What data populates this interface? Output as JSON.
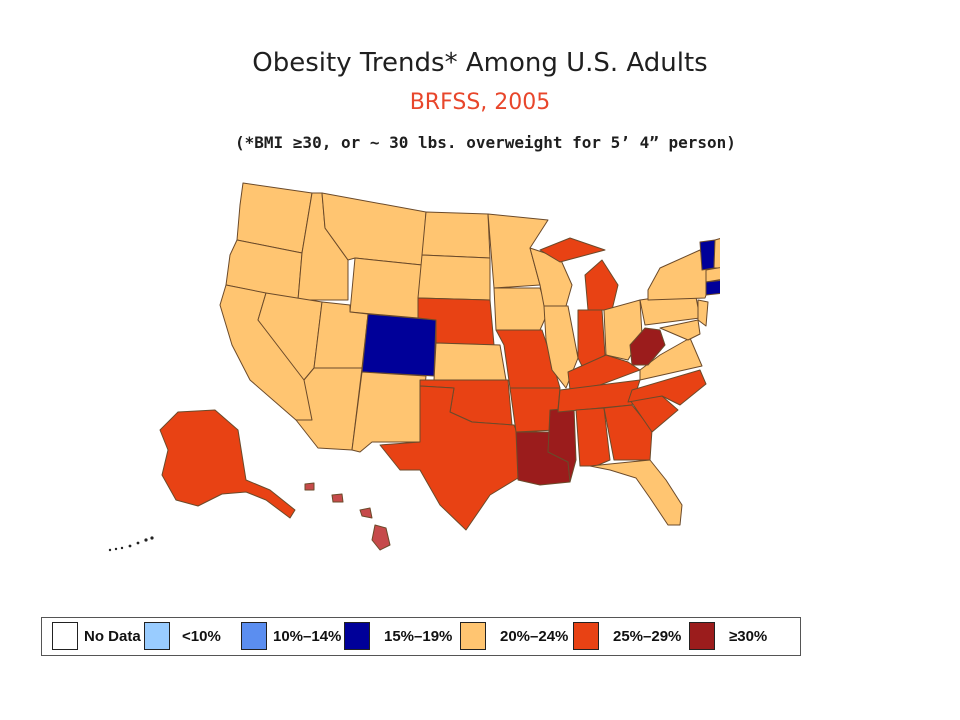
{
  "title": "Obesity Trends* Among U.S. Adults",
  "subtitle": "BRFSS, 2005",
  "note": "(*BMI ≥30, or ~ 30 lbs. overweight for 5’ 4” person)",
  "colors": {
    "title": "#1f1f1f",
    "subtitle": "#e8462b",
    "no_data": "#ffffff",
    "lt10": "#99ccff",
    "10_14": "#5b8ef0",
    "15_19": "#000099",
    "20_24": "#ffc571",
    "25_29": "#e84214",
    "ge30": "#9b1c1c",
    "hawaii": "#c64a4a",
    "border": "#6b4a2a"
  },
  "legend": [
    {
      "label": "No Data",
      "color": "#ffffff"
    },
    {
      "label": "<10%",
      "color": "#99ccff"
    },
    {
      "label": "10%–14%",
      "color": "#5b8ef0"
    },
    {
      "label": "15%–19%",
      "color": "#000099"
    },
    {
      "label": "20%–24%",
      "color": "#ffc571"
    },
    {
      "label": "25%–29%",
      "color": "#e84214"
    },
    {
      "label": "≥30%",
      "color": "#9b1c1c"
    }
  ]
}
